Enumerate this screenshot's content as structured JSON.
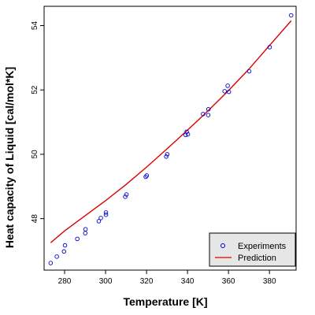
{
  "chart_data": {
    "type": "scatter",
    "xlabel": "Temperature [K]",
    "ylabel": "Heat capacity of Liquid [cal/mol*K]",
    "xlim": [
      270,
      393
    ],
    "ylim": [
      46.4,
      54.6
    ],
    "x_ticks": [
      280,
      300,
      320,
      340,
      360,
      380
    ],
    "y_ticks": [
      48,
      50,
      52,
      54
    ],
    "grid": false,
    "legend_position": "bottom-right",
    "legend": [
      "Experiments",
      "Prediction"
    ],
    "colors": {
      "experiments": "#0000CC",
      "prediction": "#DD0000",
      "legend_bg": "#E6E6E6"
    },
    "series": [
      {
        "name": "Experiments",
        "kind": "points",
        "points": [
          [
            273.2,
            46.62
          ],
          [
            276.2,
            46.82
          ],
          [
            279.7,
            46.98
          ],
          [
            280.2,
            47.17
          ],
          [
            286.2,
            47.37
          ],
          [
            290.1,
            47.55
          ],
          [
            290.2,
            47.67
          ],
          [
            296.7,
            47.92
          ],
          [
            297.7,
            48.02
          ],
          [
            300.2,
            48.12
          ],
          [
            300.2,
            48.19
          ],
          [
            309.6,
            48.68
          ],
          [
            310.2,
            48.75
          ],
          [
            319.6,
            49.3
          ],
          [
            320.1,
            49.34
          ],
          [
            329.6,
            49.93
          ],
          [
            330.1,
            50.0
          ],
          [
            339.1,
            50.6
          ],
          [
            339.6,
            50.7
          ],
          [
            340.2,
            50.62
          ],
          [
            347.6,
            51.25
          ],
          [
            350.1,
            51.22
          ],
          [
            350.2,
            51.4
          ],
          [
            358.1,
            51.96
          ],
          [
            359.6,
            52.13
          ],
          [
            360.2,
            51.94
          ],
          [
            370.1,
            52.58
          ],
          [
            380.1,
            53.33
          ],
          [
            390.6,
            54.32
          ]
        ]
      },
      {
        "name": "Prediction",
        "kind": "line",
        "points": [
          [
            273.2,
            47.25
          ],
          [
            280,
            47.62
          ],
          [
            290,
            48.09
          ],
          [
            300,
            48.56
          ],
          [
            310,
            49.06
          ],
          [
            320,
            49.6
          ],
          [
            330,
            50.17
          ],
          [
            340,
            50.75
          ],
          [
            350,
            51.35
          ],
          [
            360,
            51.98
          ],
          [
            370,
            52.65
          ],
          [
            380,
            53.38
          ],
          [
            390.6,
            54.15
          ]
        ]
      }
    ]
  }
}
